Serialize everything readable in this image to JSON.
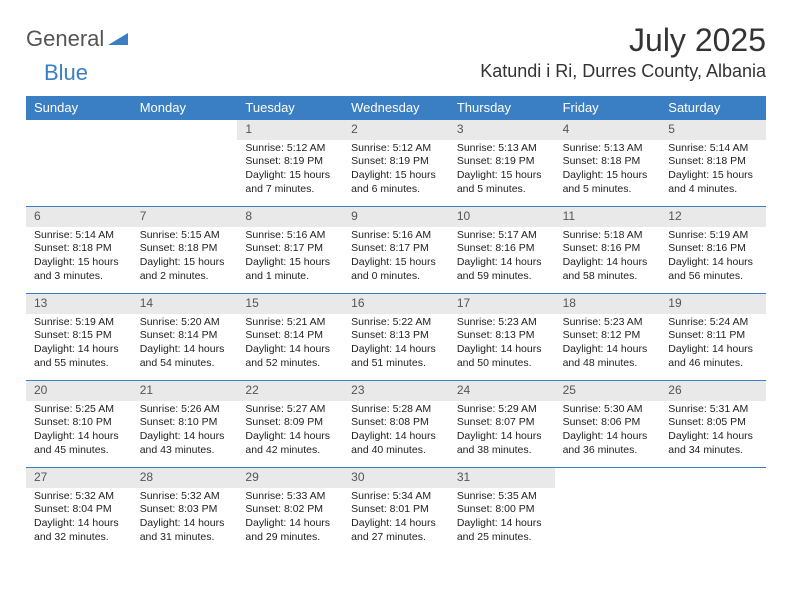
{
  "brand": {
    "part1": "General",
    "part2": "Blue"
  },
  "title": "July 2025",
  "location": "Katundi i Ri, Durres County, Albania",
  "colors": {
    "header_bg": "#3a7fc4",
    "header_text": "#ffffff",
    "daynum_bg": "#e9e9e9",
    "daynum_text": "#555555",
    "body_text": "#222222",
    "page_bg": "#ffffff"
  },
  "typography": {
    "title_fontsize": 32,
    "location_fontsize": 18,
    "dayheader_fontsize": 13,
    "daynum_fontsize": 12,
    "cell_fontsize": 10.5
  },
  "day_names": [
    "Sunday",
    "Monday",
    "Tuesday",
    "Wednesday",
    "Thursday",
    "Friday",
    "Saturday"
  ],
  "weeks": [
    [
      {
        "empty": true
      },
      {
        "empty": true
      },
      {
        "day": "1",
        "sunrise": "Sunrise: 5:12 AM",
        "sunset": "Sunset: 8:19 PM",
        "daylight1": "Daylight: 15 hours",
        "daylight2": "and 7 minutes."
      },
      {
        "day": "2",
        "sunrise": "Sunrise: 5:12 AM",
        "sunset": "Sunset: 8:19 PM",
        "daylight1": "Daylight: 15 hours",
        "daylight2": "and 6 minutes."
      },
      {
        "day": "3",
        "sunrise": "Sunrise: 5:13 AM",
        "sunset": "Sunset: 8:19 PM",
        "daylight1": "Daylight: 15 hours",
        "daylight2": "and 5 minutes."
      },
      {
        "day": "4",
        "sunrise": "Sunrise: 5:13 AM",
        "sunset": "Sunset: 8:18 PM",
        "daylight1": "Daylight: 15 hours",
        "daylight2": "and 5 minutes."
      },
      {
        "day": "5",
        "sunrise": "Sunrise: 5:14 AM",
        "sunset": "Sunset: 8:18 PM",
        "daylight1": "Daylight: 15 hours",
        "daylight2": "and 4 minutes."
      }
    ],
    [
      {
        "day": "6",
        "sunrise": "Sunrise: 5:14 AM",
        "sunset": "Sunset: 8:18 PM",
        "daylight1": "Daylight: 15 hours",
        "daylight2": "and 3 minutes."
      },
      {
        "day": "7",
        "sunrise": "Sunrise: 5:15 AM",
        "sunset": "Sunset: 8:18 PM",
        "daylight1": "Daylight: 15 hours",
        "daylight2": "and 2 minutes."
      },
      {
        "day": "8",
        "sunrise": "Sunrise: 5:16 AM",
        "sunset": "Sunset: 8:17 PM",
        "daylight1": "Daylight: 15 hours",
        "daylight2": "and 1 minute."
      },
      {
        "day": "9",
        "sunrise": "Sunrise: 5:16 AM",
        "sunset": "Sunset: 8:17 PM",
        "daylight1": "Daylight: 15 hours",
        "daylight2": "and 0 minutes."
      },
      {
        "day": "10",
        "sunrise": "Sunrise: 5:17 AM",
        "sunset": "Sunset: 8:16 PM",
        "daylight1": "Daylight: 14 hours",
        "daylight2": "and 59 minutes."
      },
      {
        "day": "11",
        "sunrise": "Sunrise: 5:18 AM",
        "sunset": "Sunset: 8:16 PM",
        "daylight1": "Daylight: 14 hours",
        "daylight2": "and 58 minutes."
      },
      {
        "day": "12",
        "sunrise": "Sunrise: 5:19 AM",
        "sunset": "Sunset: 8:16 PM",
        "daylight1": "Daylight: 14 hours",
        "daylight2": "and 56 minutes."
      }
    ],
    [
      {
        "day": "13",
        "sunrise": "Sunrise: 5:19 AM",
        "sunset": "Sunset: 8:15 PM",
        "daylight1": "Daylight: 14 hours",
        "daylight2": "and 55 minutes."
      },
      {
        "day": "14",
        "sunrise": "Sunrise: 5:20 AM",
        "sunset": "Sunset: 8:14 PM",
        "daylight1": "Daylight: 14 hours",
        "daylight2": "and 54 minutes."
      },
      {
        "day": "15",
        "sunrise": "Sunrise: 5:21 AM",
        "sunset": "Sunset: 8:14 PM",
        "daylight1": "Daylight: 14 hours",
        "daylight2": "and 52 minutes."
      },
      {
        "day": "16",
        "sunrise": "Sunrise: 5:22 AM",
        "sunset": "Sunset: 8:13 PM",
        "daylight1": "Daylight: 14 hours",
        "daylight2": "and 51 minutes."
      },
      {
        "day": "17",
        "sunrise": "Sunrise: 5:23 AM",
        "sunset": "Sunset: 8:13 PM",
        "daylight1": "Daylight: 14 hours",
        "daylight2": "and 50 minutes."
      },
      {
        "day": "18",
        "sunrise": "Sunrise: 5:23 AM",
        "sunset": "Sunset: 8:12 PM",
        "daylight1": "Daylight: 14 hours",
        "daylight2": "and 48 minutes."
      },
      {
        "day": "19",
        "sunrise": "Sunrise: 5:24 AM",
        "sunset": "Sunset: 8:11 PM",
        "daylight1": "Daylight: 14 hours",
        "daylight2": "and 46 minutes."
      }
    ],
    [
      {
        "day": "20",
        "sunrise": "Sunrise: 5:25 AM",
        "sunset": "Sunset: 8:10 PM",
        "daylight1": "Daylight: 14 hours",
        "daylight2": "and 45 minutes."
      },
      {
        "day": "21",
        "sunrise": "Sunrise: 5:26 AM",
        "sunset": "Sunset: 8:10 PM",
        "daylight1": "Daylight: 14 hours",
        "daylight2": "and 43 minutes."
      },
      {
        "day": "22",
        "sunrise": "Sunrise: 5:27 AM",
        "sunset": "Sunset: 8:09 PM",
        "daylight1": "Daylight: 14 hours",
        "daylight2": "and 42 minutes."
      },
      {
        "day": "23",
        "sunrise": "Sunrise: 5:28 AM",
        "sunset": "Sunset: 8:08 PM",
        "daylight1": "Daylight: 14 hours",
        "daylight2": "and 40 minutes."
      },
      {
        "day": "24",
        "sunrise": "Sunrise: 5:29 AM",
        "sunset": "Sunset: 8:07 PM",
        "daylight1": "Daylight: 14 hours",
        "daylight2": "and 38 minutes."
      },
      {
        "day": "25",
        "sunrise": "Sunrise: 5:30 AM",
        "sunset": "Sunset: 8:06 PM",
        "daylight1": "Daylight: 14 hours",
        "daylight2": "and 36 minutes."
      },
      {
        "day": "26",
        "sunrise": "Sunrise: 5:31 AM",
        "sunset": "Sunset: 8:05 PM",
        "daylight1": "Daylight: 14 hours",
        "daylight2": "and 34 minutes."
      }
    ],
    [
      {
        "day": "27",
        "sunrise": "Sunrise: 5:32 AM",
        "sunset": "Sunset: 8:04 PM",
        "daylight1": "Daylight: 14 hours",
        "daylight2": "and 32 minutes."
      },
      {
        "day": "28",
        "sunrise": "Sunrise: 5:32 AM",
        "sunset": "Sunset: 8:03 PM",
        "daylight1": "Daylight: 14 hours",
        "daylight2": "and 31 minutes."
      },
      {
        "day": "29",
        "sunrise": "Sunrise: 5:33 AM",
        "sunset": "Sunset: 8:02 PM",
        "daylight1": "Daylight: 14 hours",
        "daylight2": "and 29 minutes."
      },
      {
        "day": "30",
        "sunrise": "Sunrise: 5:34 AM",
        "sunset": "Sunset: 8:01 PM",
        "daylight1": "Daylight: 14 hours",
        "daylight2": "and 27 minutes."
      },
      {
        "day": "31",
        "sunrise": "Sunrise: 5:35 AM",
        "sunset": "Sunset: 8:00 PM",
        "daylight1": "Daylight: 14 hours",
        "daylight2": "and 25 minutes."
      },
      {
        "empty": true
      },
      {
        "empty": true
      }
    ]
  ]
}
